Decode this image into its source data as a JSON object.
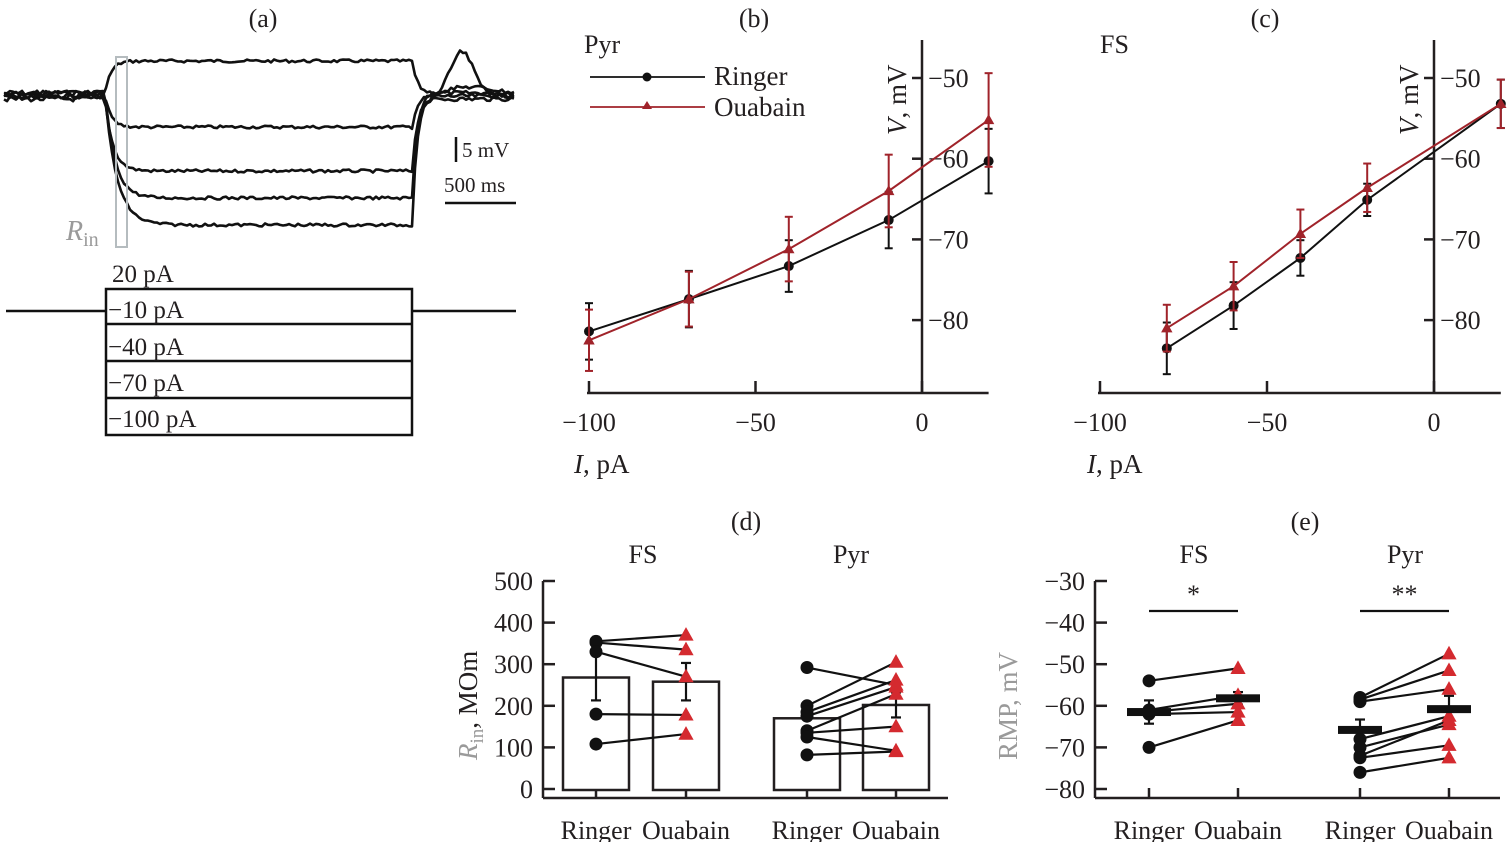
{
  "figure": {
    "panel_a": {
      "label": "(a)",
      "scale_bar_v": "5 mV",
      "scale_bar_t": "500 ms",
      "rin_label": "R",
      "rin_sub": "in",
      "current_steps": [
        "20 pA",
        "−10 pA",
        "−40 pA",
        "−70 pA",
        "−100 pA"
      ]
    }
  },
  "chart_data": [
    {
      "id": "b",
      "type": "line",
      "panel_label": "(b)",
      "title": "Pyr",
      "xlabel_italic": "I",
      "xlabel_rest": ", pA",
      "ylabel_italic": "V",
      "ylabel_rest": ", mV",
      "xlim": [
        -100,
        20
      ],
      "ylim": [
        -89,
        -46
      ],
      "xticks": [
        -100,
        -50,
        0
      ],
      "xtick_labels": [
        "−100",
        "−50",
        "0"
      ],
      "yticks": [
        -50,
        -60,
        -70,
        -80
      ],
      "ytick_labels": [
        "−50",
        "−60",
        "−70",
        "−80"
      ],
      "legend": "top-left",
      "series": [
        {
          "name": "Ringer",
          "color": "#111111",
          "marker": "circle",
          "x": [
            -100,
            -70,
            -40,
            -10,
            20
          ],
          "y": [
            -81.4,
            -77.4,
            -73.3,
            -67.6,
            -60.3
          ],
          "err": [
            3.5,
            3.5,
            3.2,
            3.5,
            4.0
          ]
        },
        {
          "name": "Ouabain",
          "color": "#a0232a",
          "marker": "triangle",
          "x": [
            -100,
            -70,
            -40,
            -10,
            20
          ],
          "y": [
            -82.5,
            -77.4,
            -71.2,
            -64.0,
            -55.2
          ],
          "err": [
            3.8,
            3.4,
            4.0,
            4.5,
            5.8
          ]
        }
      ]
    },
    {
      "id": "c",
      "type": "line",
      "panel_label": "(c)",
      "title": "FS",
      "xlabel_italic": "I",
      "xlabel_rest": ", pA",
      "ylabel_italic": "V",
      "ylabel_rest": ", mV",
      "xlim": [
        -100,
        20
      ],
      "ylim": [
        -89,
        -46
      ],
      "xticks": [
        -100,
        -50,
        0
      ],
      "xtick_labels": [
        "−100",
        "−50",
        "0"
      ],
      "yticks": [
        -50,
        -60,
        -70,
        -80
      ],
      "ytick_labels": [
        "−50",
        "−60",
        "−70",
        "−80"
      ],
      "series": [
        {
          "name": "Ringer",
          "color": "#111111",
          "marker": "circle",
          "x": [
            -80,
            -60,
            -40,
            -20,
            20
          ],
          "y": [
            -83.5,
            -78.2,
            -72.3,
            -65.1,
            -53.2
          ],
          "err": [
            3.2,
            2.9,
            2.2,
            2.0,
            3.0
          ]
        },
        {
          "name": "Ouabain",
          "color": "#a0232a",
          "marker": "triangle",
          "x": [
            -80,
            -60,
            -40,
            -20,
            20
          ],
          "y": [
            -81.0,
            -75.8,
            -69.3,
            -63.6,
            -53.2
          ],
          "err": [
            2.9,
            3.0,
            3.0,
            3.0,
            3.0
          ]
        }
      ]
    },
    {
      "id": "d",
      "type": "bar",
      "panel_label": "(d)",
      "ylabel_italic": "R",
      "ylabel_sub": "in",
      "ylabel_rest": ", MOm",
      "ylim": [
        0,
        500
      ],
      "yticks": [
        0,
        100,
        200,
        300,
        400,
        500
      ],
      "ytick_labels": [
        "0",
        "100",
        "200",
        "300",
        "400",
        "500"
      ],
      "groups": [
        {
          "name": "FS",
          "categories": [
            "Ringer",
            "Ouabain"
          ],
          "means": [
            268,
            258
          ],
          "errs": [
            55,
            45
          ],
          "pairs": [
            [
              355,
              370
            ],
            [
              352,
              335
            ],
            [
              330,
              270
            ],
            [
              180,
              178
            ],
            [
              108,
              132
            ]
          ]
        },
        {
          "name": "Pyr",
          "categories": [
            "Ringer",
            "Ouabain"
          ],
          "means": [
            170,
            202
          ],
          "errs": [
            0,
            30
          ],
          "pairs": [
            [
              292,
              250
            ],
            [
              200,
              305
            ],
            [
              185,
              262
            ],
            [
              175,
              245
            ],
            [
              140,
              228
            ],
            [
              135,
              150
            ],
            [
              125,
              92
            ],
            [
              82,
              90
            ]
          ]
        }
      ]
    },
    {
      "id": "e",
      "type": "scatter",
      "panel_label": "(e)",
      "ylabel": "RMP, mV",
      "ylim": [
        -80,
        -30
      ],
      "yticks": [
        -30,
        -40,
        -50,
        -60,
        -70,
        -80
      ],
      "ytick_labels": [
        "−30",
        "−40",
        "−50",
        "−60",
        "−70",
        "−80"
      ],
      "groups": [
        {
          "name": "FS",
          "significance": "*",
          "categories": [
            "Ringer",
            "Ouabain"
          ],
          "means": [
            -61.5,
            -58.2
          ],
          "errs": [
            2.8,
            1.5
          ],
          "pairs": [
            [
              -54,
              -51
            ],
            [
              -61,
              -57.5
            ],
            [
              -61.5,
              -59.5
            ],
            [
              -62,
              -61.5
            ],
            [
              -70,
              -63.5
            ]
          ]
        },
        {
          "name": "Pyr",
          "significance": "**",
          "categories": [
            "Ringer",
            "Ouabain"
          ],
          "means": [
            -65.8,
            -60.8
          ],
          "errs": [
            2.5,
            3.2
          ],
          "pairs": [
            [
              -58,
              -47.5
            ],
            [
              -58.5,
              -51.5
            ],
            [
              -59,
              -56
            ],
            [
              -68,
              -62.5
            ],
            [
              -70,
              -64.5
            ],
            [
              -72,
              -63.5
            ],
            [
              -72.5,
              -69.5
            ],
            [
              -76,
              -72.5
            ]
          ]
        }
      ]
    }
  ],
  "colors": {
    "ringer": "#111111",
    "ouabain": "#a0232a",
    "marker_red": "#d42a2f",
    "grey_label": "#9a9a9a"
  }
}
